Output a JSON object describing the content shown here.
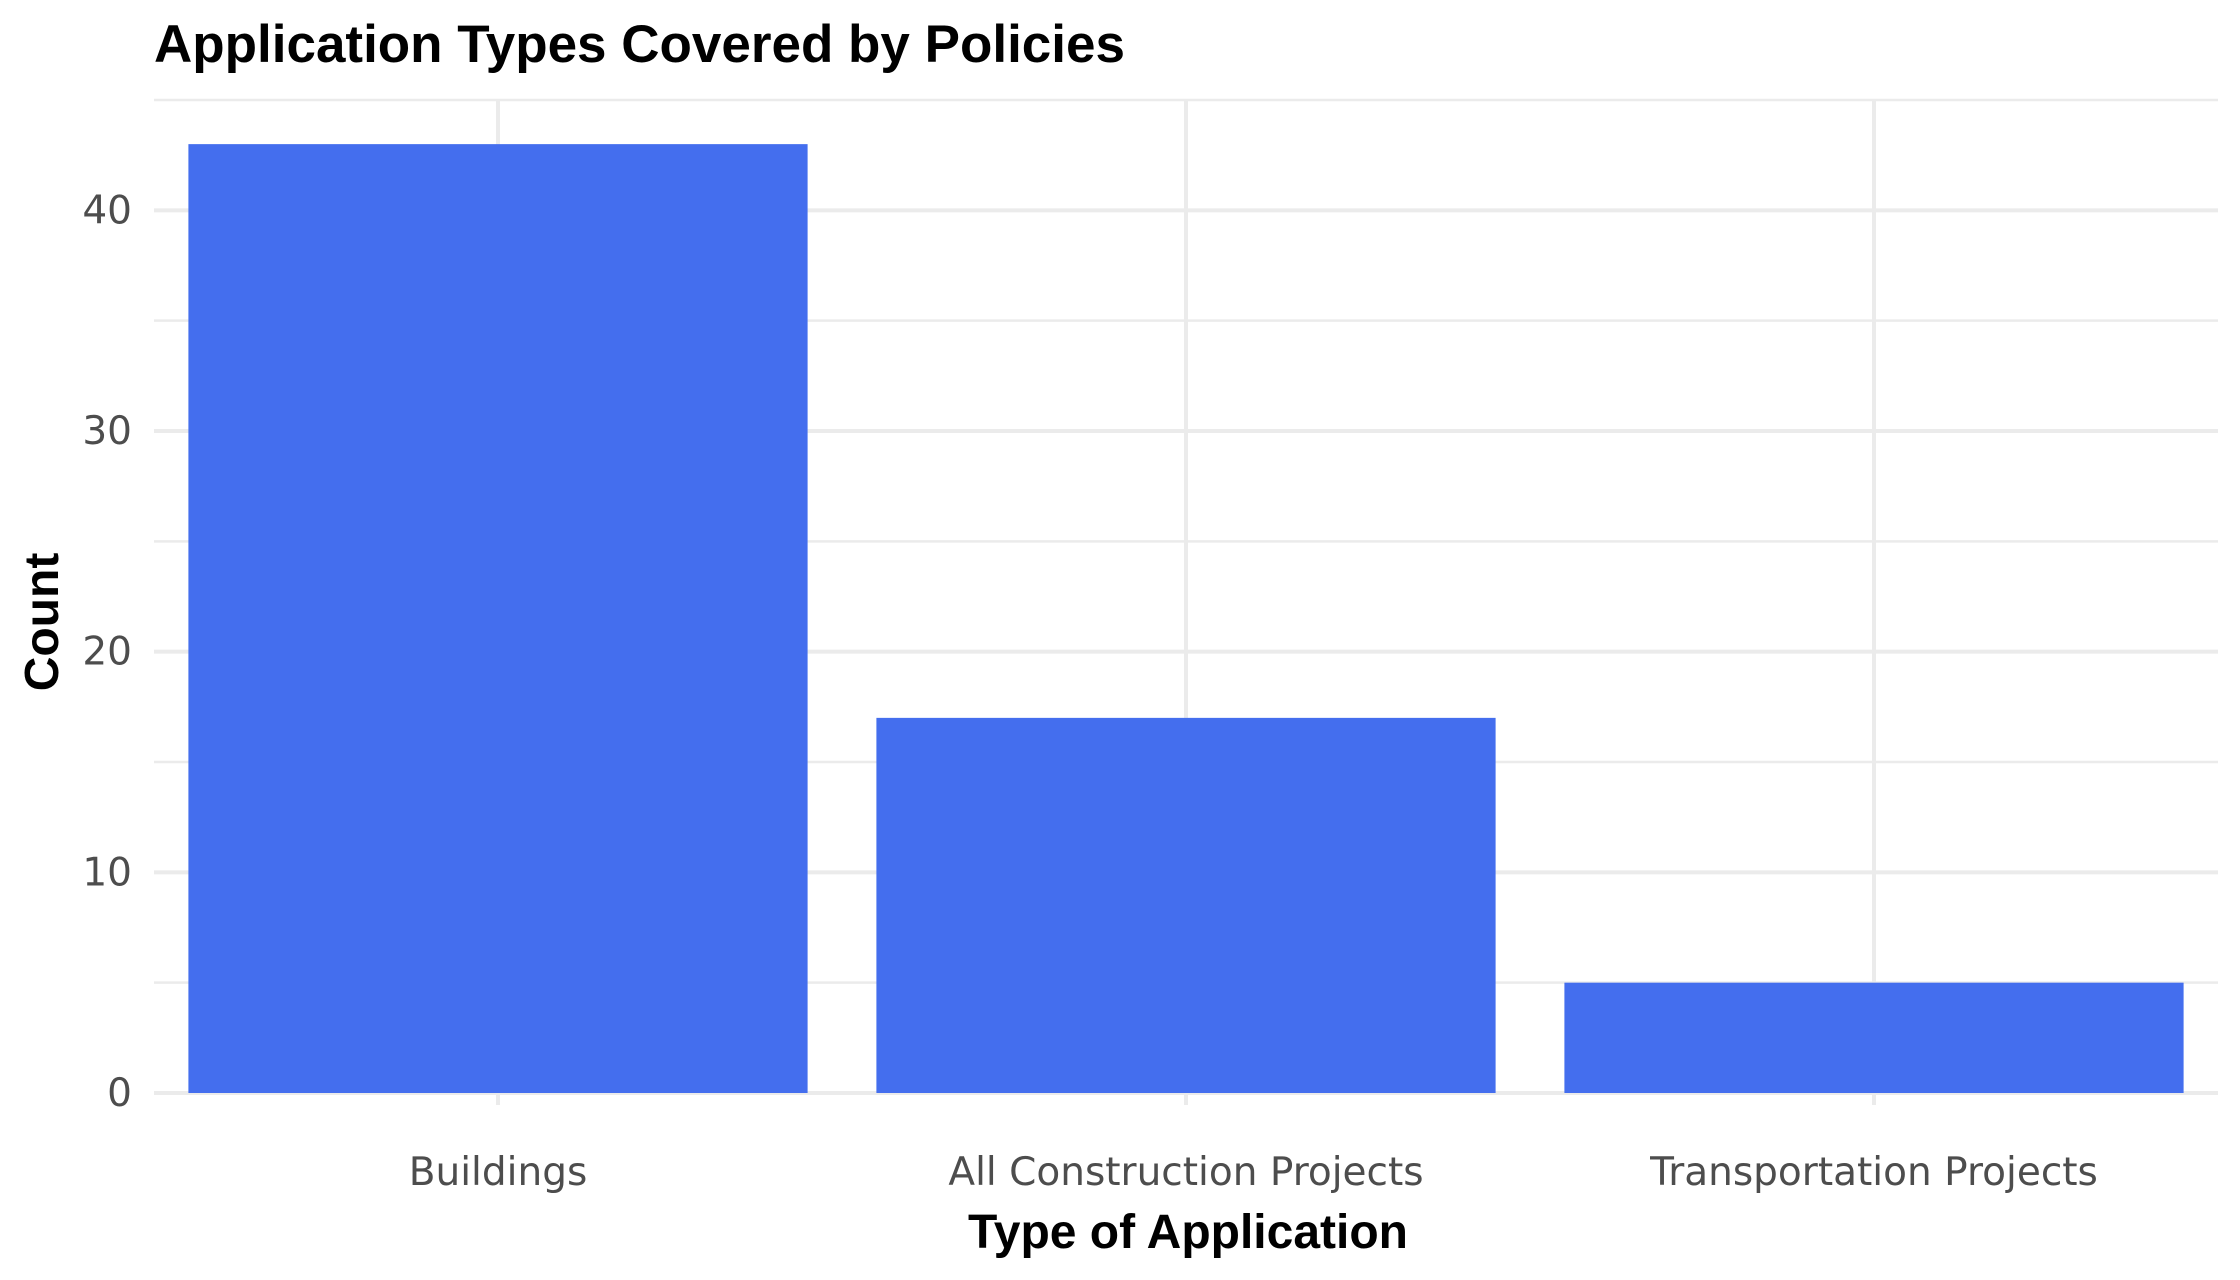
{
  "chart_data": {
    "type": "bar",
    "title": "Application Types Covered by Policies",
    "xlabel": "Type of Application",
    "ylabel": "Count",
    "categories": [
      "Buildings",
      "All Construction Projects",
      "Transportation Projects"
    ],
    "values": [
      43,
      17,
      5
    ],
    "ylim": [
      0,
      45
    ],
    "yticks": [
      0,
      10,
      20,
      30,
      40
    ],
    "ytick_labels": [
      "0",
      "10",
      "20",
      "30",
      "40"
    ],
    "bar_color": "#446EEE",
    "grid": true,
    "legend": "none"
  }
}
